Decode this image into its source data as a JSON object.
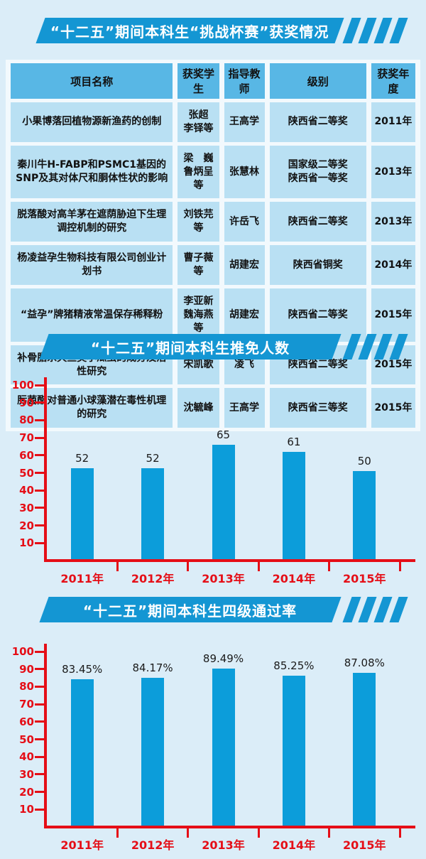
{
  "colors": {
    "page_bg": "#dbedf8",
    "banner_blue": "#1496d3",
    "bar_blue": "#0c9dda",
    "axis_red": "#e50e17",
    "table_header_cell": "#58b7e5",
    "table_body_cell": "#b9e0f3",
    "table_gap": "#f2f9fd",
    "banner_text": "#ffffff"
  },
  "banner1": {
    "title": "“十二五”期间本科生“挑战杯赛”获奖情况"
  },
  "banner2": {
    "title": "“十二五”期间本科生推免人数"
  },
  "banner3": {
    "title": "“十二五”期间本科生四级通过率"
  },
  "table": {
    "headers": [
      "项目名称",
      "获奖学生",
      "指导教师",
      "级别",
      "获奖年度"
    ],
    "rows": [
      {
        "project": "小果博落回植物源新渔药的创制",
        "students": "张超\n李铎等",
        "advisor": "王高学",
        "level": "陕西省二等奖",
        "year": "2011年"
      },
      {
        "project": "秦川牛H-FABP和PSMC1基因的SNP及其对体尺和胴体性状的影响",
        "students": "梁　巍\n鲁炳呈等",
        "advisor": "张慧林",
        "level": "国家级二等奖\n陕西省一等奖",
        "year": "2013年"
      },
      {
        "project": "脱落酸对高羊茅在遮荫胁迫下生理调控机制的研究",
        "students": "刘铁芫等",
        "advisor": "许岳飞",
        "level": "陕西省二等奖",
        "year": "2013年"
      },
      {
        "project": "杨凌益孕生物科技有限公司创业计划书",
        "students": "曹子薇等",
        "advisor": "胡建宏",
        "level": "陕西省铜奖",
        "year": "2014年"
      },
      {
        "project": "“益孕”牌猪精液常温保存稀释粉",
        "students": "李亚新\n魏海燕等",
        "advisor": "胡建宏",
        "level": "陕西省二等奖",
        "year": "2015年"
      },
      {
        "project": "补骨脂杀灭鱼类小瓜虫的成分及活性研究",
        "students": "宋凯歌",
        "advisor": "凌飞",
        "level": "陕西省二等奖",
        "year": "2015年"
      },
      {
        "project": "肟菌酯对普通小球藻潜在毒性机理的研究",
        "students": "沈毓峰",
        "advisor": "王高学",
        "level": "陕西省三等奖",
        "year": "2015年"
      }
    ]
  },
  "chart_data": [
    {
      "type": "bar",
      "title": "“十二五”期间本科生推免人数",
      "categories": [
        "2011年",
        "2012年",
        "2013年",
        "2014年",
        "2015年"
      ],
      "values": [
        52,
        52,
        65,
        61,
        50
      ],
      "value_labels": [
        "52",
        "52",
        "65",
        "61",
        "50"
      ],
      "y_ticks": [
        10,
        20,
        30,
        40,
        50,
        60,
        70,
        80,
        90,
        100
      ],
      "ylim": [
        0,
        100
      ],
      "xlabel": "",
      "ylabel": "",
      "grid": false,
      "legend": false,
      "bar_color": "#0c9dda",
      "axis_color": "#e50e17"
    },
    {
      "type": "bar",
      "title": "“十二五”期间本科生四级通过率",
      "categories": [
        "2011年",
        "2012年",
        "2013年",
        "2014年",
        "2015年"
      ],
      "values": [
        83.45,
        84.17,
        89.49,
        85.25,
        87.08
      ],
      "value_labels": [
        "83.45%",
        "84.17%",
        "89.49%",
        "85.25%",
        "87.08%"
      ],
      "y_ticks": [
        10,
        20,
        30,
        40,
        50,
        60,
        70,
        80,
        90,
        100
      ],
      "ylim": [
        0,
        100
      ],
      "xlabel": "",
      "ylabel": "",
      "grid": false,
      "legend": false,
      "bar_color": "#0c9dda",
      "axis_color": "#e50e17"
    }
  ]
}
